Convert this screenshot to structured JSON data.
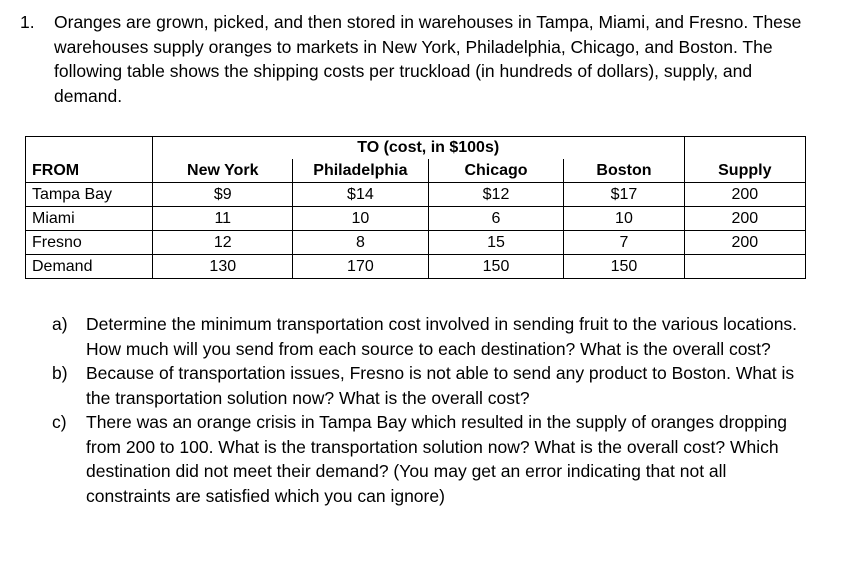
{
  "problem": {
    "number": "1.",
    "intro": "Oranges are grown, picked, and then stored in warehouses in Tampa, Miami, and Fresno. These warehouses supply oranges to markets in New York, Philadelphia, Chicago, and Boston. The following table shows the shipping costs per truckload (in hundreds of dollars), supply, and demand."
  },
  "table": {
    "to_header": "TO (cost, in $100s)",
    "columns": [
      "FROM",
      "New York",
      "Philadelphia",
      "Chicago",
      "Boston",
      "Supply"
    ],
    "rows": [
      [
        "Tampa Bay",
        "$9",
        "$14",
        "$12",
        "$17",
        "200"
      ],
      [
        "Miami",
        "11",
        "10",
        "6",
        "10",
        "200"
      ],
      [
        "Fresno",
        "12",
        "8",
        "15",
        "7",
        "200"
      ],
      [
        "Demand",
        "130",
        "170",
        "150",
        "150",
        ""
      ]
    ]
  },
  "parts": [
    {
      "label": "a)",
      "text": "Determine the minimum transportation cost involved in sending fruit to the various locations.  How much will you send from each source to each destination?  What is the overall cost?"
    },
    {
      "label": "b)",
      "text": "Because of transportation issues, Fresno is not able to send any product to Boston.  What is the transportation solution now?  What is the overall cost?"
    },
    {
      "label": "c)",
      "text": "There was an orange crisis in Tampa Bay which resulted in the supply of oranges dropping from 200 to 100.  What is the transportation solution now?  What is the overall cost? Which destination did not meet their demand?  (You may get an error indicating that not all constraints are satisfied which you can ignore)"
    }
  ]
}
